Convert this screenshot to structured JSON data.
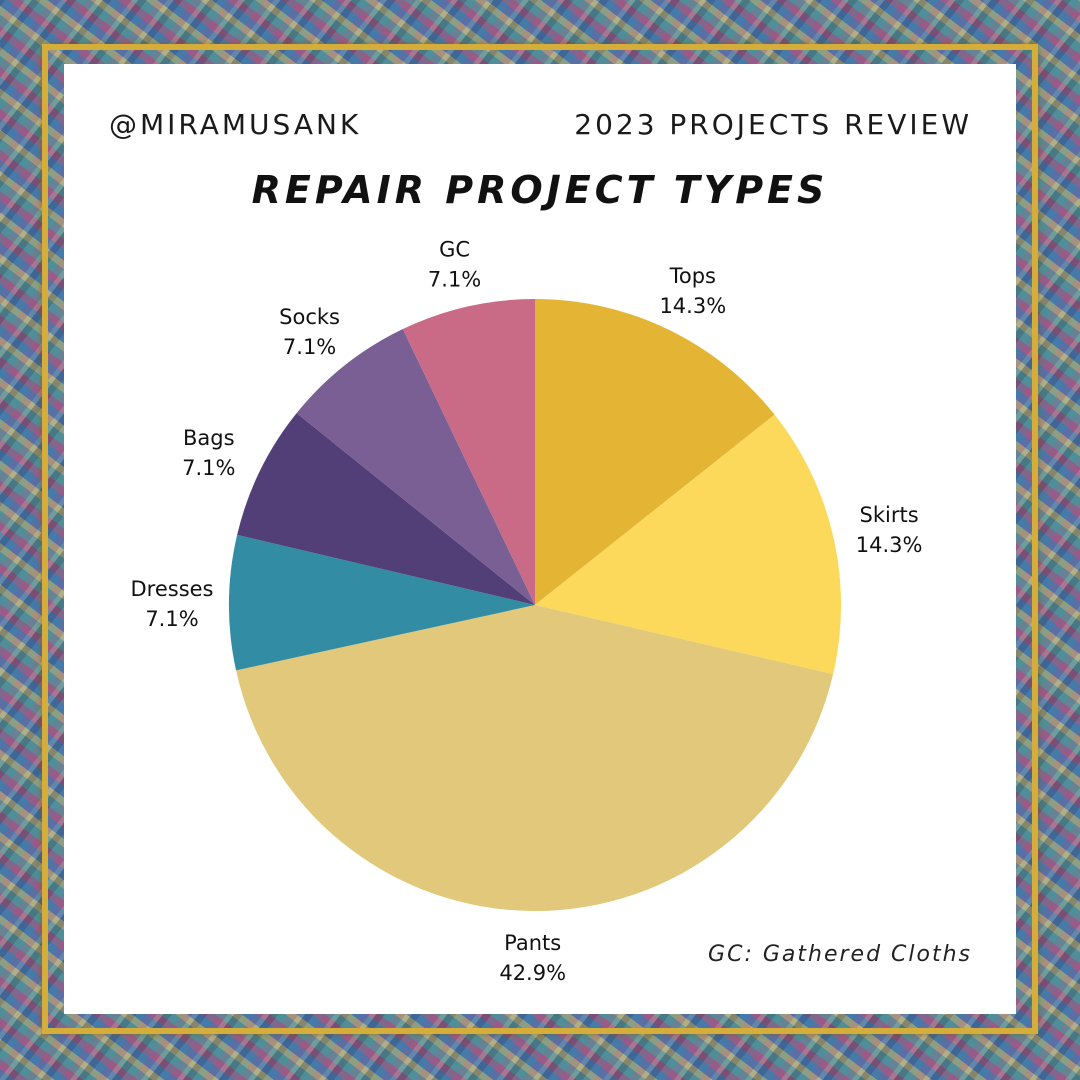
{
  "header": {
    "handle": "@MIRAMUSANK",
    "review": "2023 PROJECTS REVIEW"
  },
  "footnote": "GC: Gathered Cloths",
  "chart_data": {
    "type": "pie",
    "title": "REPAIR PROJECT TYPES",
    "slices": [
      {
        "label": "Tops",
        "value": 14.3,
        "display": "14.3%",
        "color": "#e4b535"
      },
      {
        "label": "Skirts",
        "value": 14.3,
        "display": "14.3%",
        "color": "#fcd95a"
      },
      {
        "label": "Pants",
        "value": 42.9,
        "display": "42.9%",
        "color": "#e1c87a"
      },
      {
        "label": "Dresses",
        "value": 7.1,
        "display": "7.1%",
        "color": "#328ca4"
      },
      {
        "label": "Bags",
        "value": 7.1,
        "display": "7.1%",
        "color": "#523f78"
      },
      {
        "label": "Socks",
        "value": 7.1,
        "display": "7.1%",
        "color": "#7a5f94"
      },
      {
        "label": "GC",
        "value": 7.1,
        "display": "7.1%",
        "color": "#c96b86"
      }
    ]
  }
}
